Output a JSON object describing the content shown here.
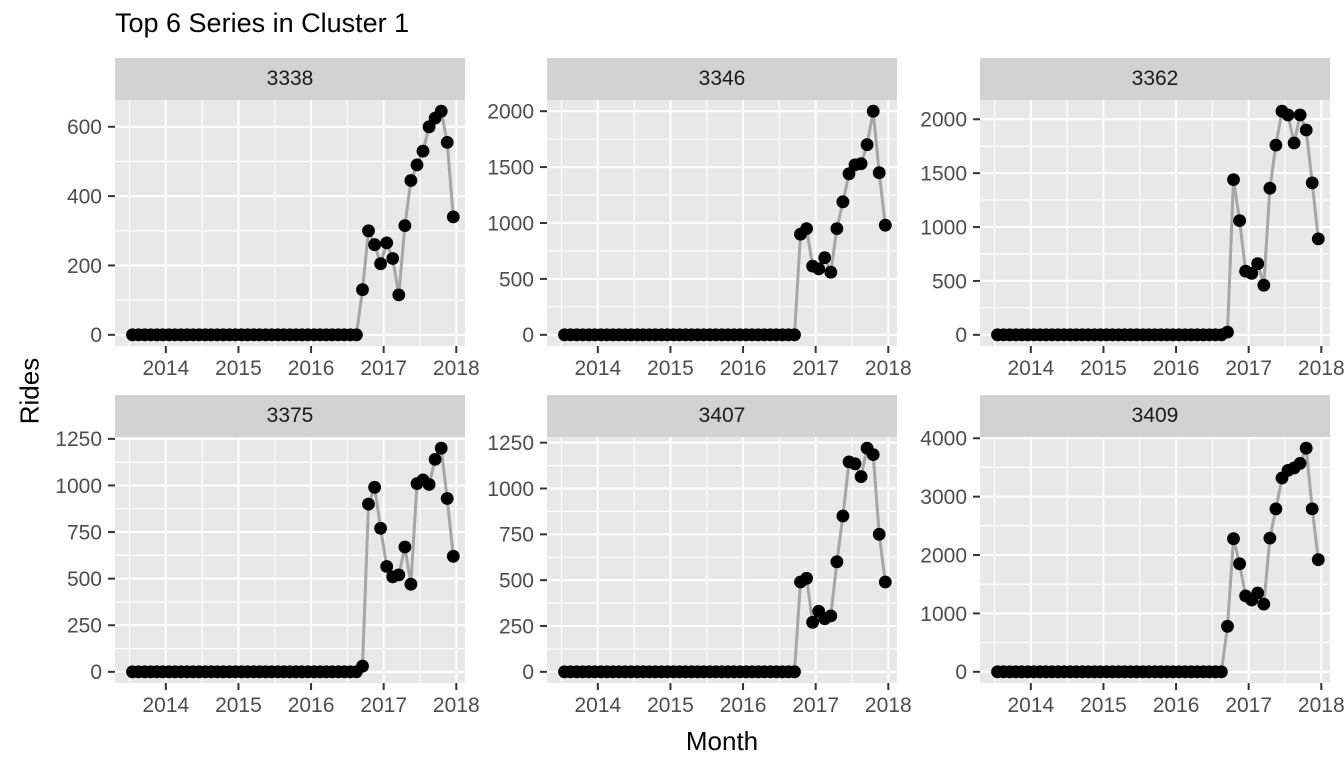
{
  "page": {
    "title": "Top 6 Series in Cluster 1"
  },
  "chart_data": {
    "type": "line",
    "title": "Top 6 Series in Cluster 1",
    "xlabel": "Month",
    "ylabel": "Rides",
    "x_start_month": "2013-07",
    "x_ticks": [
      2014,
      2015,
      2016,
      2017,
      2018
    ],
    "x_minor_ticks": [
      2013.5,
      2014.5,
      2015.5,
      2016.5,
      2017.5
    ],
    "x_range": [
      2013.3,
      2018.12
    ],
    "grid": true,
    "legend_position": "none",
    "colors": {
      "point": "#000000",
      "line": "#a6a6a6",
      "panel_bg": "#e8e8e8",
      "strip_bg": "#d2d2d2",
      "grid": "#ffffff",
      "tick_mark": "#333333",
      "tick_text": "#4d4d4d"
    },
    "facets": [
      {
        "label": "3338",
        "y_ticks": [
          0,
          200,
          400,
          600
        ],
        "values": [
          0,
          0,
          0,
          0,
          0,
          0,
          0,
          0,
          0,
          0,
          0,
          0,
          0,
          0,
          0,
          0,
          0,
          0,
          0,
          0,
          0,
          0,
          0,
          0,
          0,
          0,
          0,
          0,
          0,
          0,
          0,
          0,
          0,
          0,
          0,
          0,
          0,
          0,
          130,
          300,
          260,
          205,
          265,
          220,
          115,
          315,
          445,
          490,
          530,
          600,
          625,
          645,
          555,
          340
        ]
      },
      {
        "label": "3346",
        "y_ticks": [
          0,
          500,
          1000,
          1500,
          2000
        ],
        "values": [
          0,
          0,
          0,
          0,
          0,
          0,
          0,
          0,
          0,
          0,
          0,
          0,
          0,
          0,
          0,
          0,
          0,
          0,
          0,
          0,
          0,
          0,
          0,
          0,
          0,
          0,
          0,
          0,
          0,
          0,
          0,
          0,
          0,
          0,
          0,
          0,
          0,
          0,
          0,
          900,
          950,
          615,
          590,
          690,
          560,
          950,
          1190,
          1440,
          1520,
          1530,
          1700,
          2000,
          1450,
          980
        ]
      },
      {
        "label": "3362",
        "y_ticks": [
          0,
          500,
          1000,
          1500,
          2000
        ],
        "values": [
          0,
          0,
          0,
          0,
          0,
          0,
          0,
          0,
          0,
          0,
          0,
          0,
          0,
          0,
          0,
          0,
          0,
          0,
          0,
          0,
          0,
          0,
          0,
          0,
          0,
          0,
          0,
          0,
          0,
          0,
          0,
          0,
          0,
          0,
          0,
          0,
          0,
          0,
          25,
          1440,
          1060,
          590,
          570,
          660,
          460,
          1360,
          1760,
          2075,
          2040,
          1780,
          2040,
          1900,
          1410,
          890
        ]
      },
      {
        "label": "3375",
        "y_ticks": [
          0,
          250,
          500,
          750,
          1000,
          1250
        ],
        "values": [
          0,
          0,
          0,
          0,
          0,
          0,
          0,
          0,
          0,
          0,
          0,
          0,
          0,
          0,
          0,
          0,
          0,
          0,
          0,
          0,
          0,
          0,
          0,
          0,
          0,
          0,
          0,
          0,
          0,
          0,
          0,
          0,
          0,
          0,
          0,
          0,
          0,
          0,
          30,
          900,
          990,
          770,
          565,
          510,
          520,
          670,
          470,
          1010,
          1030,
          1005,
          1140,
          1200,
          930,
          620
        ]
      },
      {
        "label": "3407",
        "y_ticks": [
          0,
          250,
          500,
          750,
          1000,
          1250
        ],
        "values": [
          0,
          0,
          0,
          0,
          0,
          0,
          0,
          0,
          0,
          0,
          0,
          0,
          0,
          0,
          0,
          0,
          0,
          0,
          0,
          0,
          0,
          0,
          0,
          0,
          0,
          0,
          0,
          0,
          0,
          0,
          0,
          0,
          0,
          0,
          0,
          0,
          0,
          0,
          0,
          490,
          510,
          270,
          330,
          290,
          305,
          600,
          850,
          1145,
          1135,
          1065,
          1220,
          1185,
          750,
          490
        ]
      },
      {
        "label": "3409",
        "y_ticks": [
          0,
          1000,
          2000,
          3000,
          4000
        ],
        "values": [
          0,
          0,
          0,
          0,
          0,
          0,
          0,
          0,
          0,
          0,
          0,
          0,
          0,
          0,
          0,
          0,
          0,
          0,
          0,
          0,
          0,
          0,
          0,
          0,
          0,
          0,
          0,
          0,
          0,
          0,
          0,
          0,
          0,
          0,
          0,
          0,
          0,
          0,
          780,
          2280,
          1850,
          1300,
          1230,
          1350,
          1160,
          2290,
          2790,
          3320,
          3450,
          3490,
          3570,
          3830,
          2790,
          1920
        ]
      }
    ]
  }
}
